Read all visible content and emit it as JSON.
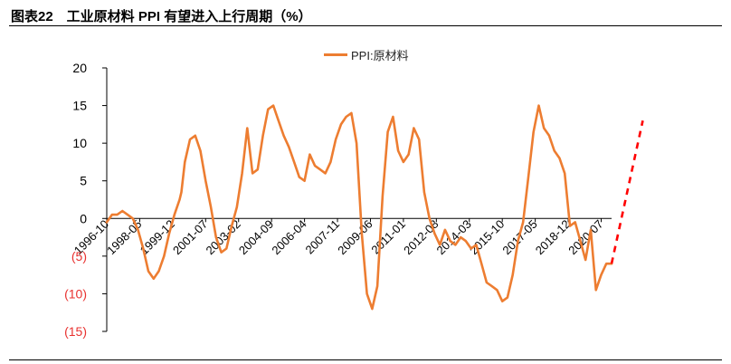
{
  "figure": {
    "title": "图表22　工业原材料 PPI 有望进入上行周期（%）"
  },
  "colors": {
    "series": "#ed7d31",
    "projection": "#ff0000",
    "negative_tick": "#e8312f",
    "axis": "#000000"
  },
  "chart_data": {
    "type": "line",
    "title": "",
    "xlabel": "",
    "ylabel": "",
    "ylim": [
      -15,
      20
    ],
    "yticks": [
      20,
      15,
      10,
      5,
      0,
      -5,
      -10,
      -15
    ],
    "ytick_labels": [
      "20",
      "15",
      "10",
      "5",
      "0",
      "(5)",
      "(10)",
      "(15)"
    ],
    "xtick_labels": [
      "1996-10",
      "1998-05",
      "1999-12",
      "2001-07",
      "2003-02",
      "2004-09",
      "2006-04",
      "2007-11",
      "2009-06",
      "2011-01",
      "2012-08",
      "2014-03",
      "2015-10",
      "2017-05",
      "2018-12",
      "2020-07"
    ],
    "legend": "top-center",
    "grid": false,
    "series": [
      {
        "name": "PPI:原材料",
        "style": "solid",
        "x": [
          "1996-10",
          "1997-01",
          "1997-04",
          "1997-07",
          "1997-10",
          "1998-01",
          "1998-04",
          "1998-07",
          "1998-10",
          "1999-01",
          "1999-04",
          "1999-07",
          "1999-10",
          "2000-01",
          "2000-04",
          "2000-05",
          "2000-07",
          "2000-10",
          "2001-01",
          "2001-04",
          "2001-07",
          "2001-10",
          "2002-01",
          "2002-04",
          "2002-07",
          "2002-10",
          "2003-01",
          "2003-04",
          "2003-07",
          "2003-10",
          "2004-01",
          "2004-04",
          "2004-07",
          "2004-10",
          "2005-01",
          "2005-04",
          "2005-07",
          "2005-10",
          "2006-01",
          "2006-04",
          "2006-07",
          "2006-10",
          "2007-01",
          "2007-04",
          "2007-07",
          "2007-10",
          "2008-01",
          "2008-04",
          "2008-07",
          "2008-10",
          "2009-01",
          "2009-04",
          "2009-07",
          "2009-10",
          "2010-01",
          "2010-04",
          "2010-07",
          "2010-10",
          "2011-01",
          "2011-04",
          "2011-07",
          "2011-10",
          "2012-01",
          "2012-04",
          "2012-07",
          "2012-10",
          "2013-01",
          "2013-04",
          "2013-07",
          "2013-10",
          "2014-01",
          "2014-04",
          "2014-07",
          "2014-10",
          "2015-01",
          "2015-04",
          "2015-07",
          "2015-10",
          "2016-01",
          "2016-04",
          "2016-07",
          "2016-10",
          "2017-01",
          "2017-04",
          "2017-07",
          "2017-10",
          "2018-01",
          "2018-04",
          "2018-07",
          "2018-10",
          "2019-01",
          "2019-04",
          "2019-07",
          "2019-10",
          "2020-01",
          "2020-04",
          "2020-07",
          "2020-10",
          "2021-01"
        ],
        "y": [
          -0.5,
          0.5,
          0.5,
          1.0,
          0.5,
          0.0,
          -1.5,
          -4.0,
          -7.0,
          -8.0,
          -7.0,
          -5.0,
          -2.0,
          0.5,
          2.5,
          3.5,
          7.5,
          10.5,
          11.0,
          9.0,
          5.0,
          1.5,
          -2.5,
          -4.5,
          -4.0,
          -1.0,
          1.5,
          6.0,
          12.0,
          6.0,
          6.5,
          11.0,
          14.5,
          15.0,
          13.0,
          11.0,
          9.5,
          7.5,
          5.5,
          5.0,
          8.5,
          7.0,
          6.5,
          6.0,
          7.5,
          10.5,
          12.5,
          13.5,
          14.0,
          10.0,
          -2.0,
          -10.0,
          -12.0,
          -9.0,
          3.0,
          11.5,
          13.5,
          9.0,
          7.5,
          8.5,
          12.0,
          10.5,
          3.5,
          0.0,
          -2.0,
          -3.5,
          -1.5,
          -3.0,
          -3.5,
          -2.5,
          -3.0,
          -4.0,
          -3.5,
          -6.0,
          -8.5,
          -9.0,
          -9.5,
          -11.0,
          -10.5,
          -7.5,
          -3.0,
          -0.5,
          5.5,
          11.5,
          15.0,
          12.0,
          11.0,
          9.0,
          8.0,
          6.0,
          -1.0,
          -0.5,
          -3.0,
          -5.5,
          -1.5,
          -9.5,
          -7.5,
          -6.0,
          -6.0
        ]
      },
      {
        "name": "",
        "style": "dashed",
        "x": [
          "2021-01",
          "2022-07"
        ],
        "y": [
          -6.0,
          13.0
        ]
      }
    ]
  }
}
